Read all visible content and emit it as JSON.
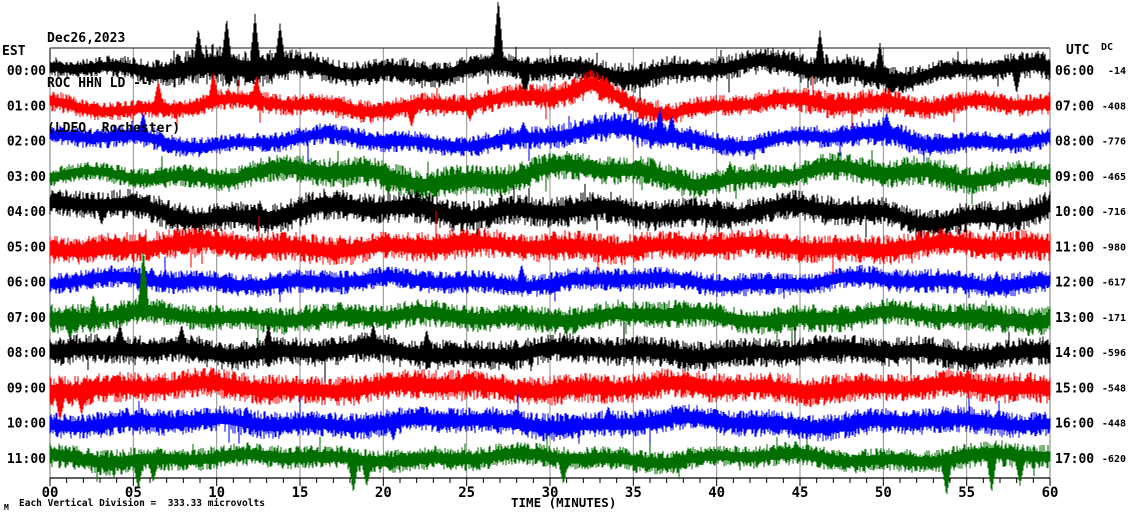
{
  "header": {
    "date": "Dec26,2023",
    "station": "ROC HHN LD --",
    "location": "(LDEO, Rochester)"
  },
  "axes": {
    "left_header": "EST",
    "right_header": "UTC",
    "dc_header": "DC",
    "x_title": "TIME (MINUTES)"
  },
  "caption": {
    "mark": "M",
    "text": "Each Vertical Division =  333.33 microvolts"
  },
  "colors": {
    "black": "#000000",
    "red": "#ff0000",
    "blue": "#0000ff",
    "green": "#006f00",
    "grid": "#8f8f8f",
    "frame_side": "#777777",
    "frame_top": "#111111",
    "axis": "#000000",
    "text": "#000000",
    "background": "#ffffff"
  },
  "chart_data": {
    "type": "line",
    "title": "ROC HHN LD -- helicorder, Dec26,2023 (LDEO, Rochester)",
    "xlabel": "TIME (MINUTES)",
    "x_range_minutes": [
      0,
      60
    ],
    "x_tick_minutes": [
      0,
      5,
      10,
      15,
      20,
      25,
      30,
      35,
      40,
      45,
      50,
      55,
      60
    ],
    "x_tick_labels": [
      "00",
      "05",
      "10",
      "15",
      "20",
      "25",
      "30",
      "35",
      "40",
      "45",
      "50",
      "55",
      "60"
    ],
    "minor_tick_every_minutes": 1,
    "grid": "vertical-only",
    "vertical_division_microvolts": 333.33,
    "rows": [
      {
        "est": "00:00",
        "utc": "06:00",
        "dc": "-14",
        "color": "black",
        "wander": 5,
        "envelope": [
          8,
          8,
          10,
          14,
          18,
          16,
          12,
          11,
          11,
          12,
          11,
          11,
          11,
          12,
          13,
          12,
          11,
          11,
          13,
          14,
          12,
          10,
          10,
          11,
          12
        ],
        "drift": [
          0,
          -2,
          -4,
          -5,
          -3,
          0,
          2,
          1,
          -1,
          -2,
          -1,
          0,
          2,
          3,
          1,
          -2,
          -4,
          -2,
          0,
          2,
          3,
          1,
          0,
          -1,
          4
        ],
        "spikes": [
          {
            "m": 8.9,
            "u": 38,
            "d": 6
          },
          {
            "m": 10.6,
            "u": 48,
            "d": 6
          },
          {
            "m": 12.3,
            "u": 55,
            "d": 7
          },
          {
            "m": 13.8,
            "u": 42,
            "d": 6
          },
          {
            "m": 26.9,
            "u": 66,
            "d": 8
          },
          {
            "m": 28.5,
            "u": 5,
            "d": 32
          },
          {
            "m": 46.2,
            "u": 40,
            "d": 6
          },
          {
            "m": 49.8,
            "u": 34,
            "d": 6
          },
          {
            "m": 58.0,
            "u": 6,
            "d": 28
          }
        ]
      },
      {
        "est": "01:00",
        "utc": "07:00",
        "dc": "-408",
        "color": "red",
        "wander": 4,
        "envelope": [
          9,
          8,
          8,
          8,
          9,
          9,
          9,
          10,
          10,
          10,
          10,
          10,
          11,
          12,
          10,
          9,
          9,
          9,
          11,
          12,
          11,
          10,
          9,
          9,
          10
        ],
        "drift": [
          0,
          1,
          2,
          0,
          -2,
          0,
          1,
          2,
          0,
          -1,
          0,
          -2,
          -8,
          -22,
          -4,
          6,
          3,
          0,
          -2,
          -4,
          -6,
          -2,
          0,
          2,
          1
        ],
        "spikes": [
          {
            "m": 6.5,
            "u": 28,
            "d": 5
          },
          {
            "m": 9.8,
            "u": 30,
            "d": 5
          },
          {
            "m": 12.4,
            "u": 26,
            "d": 5
          },
          {
            "m": 21.7,
            "u": 6,
            "d": 22
          },
          {
            "m": 25.2,
            "u": 5,
            "d": 16
          },
          {
            "m": 33.4,
            "u": 14,
            "d": 6
          }
        ]
      },
      {
        "est": "02:00",
        "utc": "08:00",
        "dc": "-776",
        "color": "blue",
        "wander": 4,
        "envelope": [
          8,
          9,
          10,
          9,
          8,
          8,
          9,
          9,
          9,
          9,
          9,
          10,
          10,
          12,
          13,
          11,
          9,
          9,
          9,
          10,
          12,
          10,
          9,
          9,
          9
        ],
        "drift": [
          0,
          -1,
          -3,
          0,
          2,
          1,
          0,
          -1,
          0,
          1,
          0,
          0,
          -2,
          -6,
          -12,
          -6,
          0,
          2,
          0,
          -2,
          -6,
          -2,
          0,
          1,
          0
        ],
        "spikes": [
          {
            "m": 5.6,
            "u": 24,
            "d": 6
          },
          {
            "m": 28.4,
            "u": 16,
            "d": 5
          },
          {
            "m": 36.6,
            "u": 28,
            "d": 8
          },
          {
            "m": 37.3,
            "u": 22,
            "d": 6
          },
          {
            "m": 50.2,
            "u": 20,
            "d": 6
          }
        ]
      },
      {
        "est": "03:00",
        "utc": "09:00",
        "dc": "-465",
        "color": "green",
        "wander": 5,
        "envelope": [
          8,
          8,
          9,
          10,
          10,
          11,
          12,
          13,
          13,
          13,
          14,
          13,
          12,
          12,
          12,
          12,
          11,
          11,
          11,
          12,
          12,
          13,
          12,
          11,
          10
        ],
        "drift": [
          2,
          3,
          1,
          -1,
          -3,
          -5,
          -3,
          0,
          2,
          3,
          2,
          0,
          -3,
          -5,
          -3,
          0,
          2,
          1,
          0,
          -2,
          -4,
          -6,
          -3,
          0,
          2
        ],
        "spikes": [
          {
            "m": 20.3,
            "u": 6,
            "d": 20
          },
          {
            "m": 40.8,
            "u": 18,
            "d": 5
          }
        ]
      },
      {
        "est": "04:00",
        "utc": "10:00",
        "dc": "-716",
        "color": "black",
        "wander": 5,
        "envelope": [
          11,
          12,
          13,
          13,
          12,
          13,
          14,
          13,
          13,
          14,
          13,
          13,
          13,
          14,
          13,
          13,
          13,
          12,
          13,
          13,
          12,
          12,
          13,
          13,
          13
        ],
        "drift": [
          -2,
          -4,
          -2,
          0,
          3,
          5,
          3,
          0,
          -3,
          -4,
          -2,
          0,
          2,
          4,
          2,
          0,
          -2,
          -3,
          0,
          3,
          5,
          7,
          4,
          2,
          0
        ],
        "spikes": [
          {
            "m": 3.1,
            "u": 6,
            "d": 20
          },
          {
            "m": 12.6,
            "u": 18,
            "d": 5
          },
          {
            "m": 31.2,
            "u": 16,
            "d": 6
          }
        ]
      },
      {
        "est": "05:00",
        "utc": "11:00",
        "dc": "-980",
        "color": "red",
        "wander": 3,
        "envelope": [
          12,
          12,
          13,
          13,
          12,
          13,
          13,
          13,
          12,
          13,
          13,
          12,
          13,
          13,
          13,
          12,
          13,
          13,
          12,
          12,
          13,
          12,
          12,
          13,
          13
        ],
        "drift": [
          0,
          1,
          -1,
          -2,
          0,
          2,
          1,
          0,
          -1,
          0,
          1,
          0,
          -1,
          -2,
          0,
          1,
          2,
          0,
          -1,
          0,
          1,
          0,
          0,
          1,
          0
        ],
        "spikes": [
          {
            "m": 17.4,
            "u": 16,
            "d": 5
          },
          {
            "m": 39.9,
            "u": 14,
            "d": 6
          }
        ]
      },
      {
        "est": "06:00",
        "utc": "12:00",
        "dc": "-617",
        "color": "blue",
        "wander": 3,
        "envelope": [
          9,
          9,
          10,
          10,
          9,
          10,
          10,
          10,
          9,
          10,
          10,
          9,
          10,
          10,
          10,
          9,
          10,
          10,
          9,
          10,
          10,
          11,
          10,
          10,
          10
        ],
        "drift": [
          0,
          -1,
          0,
          1,
          0,
          -1,
          0,
          1,
          0,
          0,
          -1,
          0,
          1,
          0,
          -1,
          0,
          0,
          1,
          0,
          -1,
          0,
          1,
          0,
          0,
          -1
        ],
        "spikes": [
          {
            "m": 6.1,
            "u": 14,
            "d": 5
          },
          {
            "m": 28.3,
            "u": 22,
            "d": 5
          },
          {
            "m": 56.8,
            "u": 16,
            "d": 6
          }
        ]
      },
      {
        "est": "07:00",
        "utc": "13:00",
        "dc": "-171",
        "color": "green",
        "wander": 3,
        "envelope": [
          13,
          12,
          11,
          11,
          11,
          11,
          12,
          11,
          11,
          12,
          11,
          11,
          12,
          12,
          11,
          12,
          11,
          11,
          12,
          12,
          11,
          11,
          12,
          12,
          12
        ],
        "drift": [
          2,
          0,
          -2,
          0,
          1,
          0,
          -1,
          0,
          1,
          0,
          0,
          -1,
          0,
          1,
          0,
          -1,
          0,
          1,
          0,
          0,
          -1,
          0,
          1,
          0,
          0
        ],
        "spikes": [
          {
            "m": 1.2,
            "u": 6,
            "d": 22
          },
          {
            "m": 2.6,
            "u": 24,
            "d": 8
          },
          {
            "m": 5.6,
            "u": 62,
            "d": 10
          },
          {
            "m": 47.5,
            "u": 15,
            "d": 5
          }
        ]
      },
      {
        "est": "08:00",
        "utc": "14:00",
        "dc": "-596",
        "color": "black",
        "wander": 3,
        "envelope": [
          12,
          13,
          13,
          12,
          13,
          13,
          12,
          13,
          13,
          13,
          12,
          13,
          13,
          12,
          13,
          13,
          13,
          12,
          13,
          13,
          12,
          13,
          13,
          12,
          13
        ],
        "drift": [
          0,
          1,
          -2,
          -4,
          -2,
          0,
          1,
          0,
          -1,
          0,
          1,
          0,
          -1,
          0,
          1,
          0,
          0,
          -1,
          0,
          1,
          0,
          -1,
          0,
          1,
          0
        ],
        "spikes": [
          {
            "m": 4.2,
            "u": 26,
            "d": 5
          },
          {
            "m": 7.9,
            "u": 24,
            "d": 5
          },
          {
            "m": 13.1,
            "u": 28,
            "d": 6
          },
          {
            "m": 19.4,
            "u": 24,
            "d": 5
          },
          {
            "m": 22.6,
            "u": 26,
            "d": 5
          }
        ]
      },
      {
        "est": "09:00",
        "utc": "15:00",
        "dc": "-548",
        "color": "red",
        "wander": 3,
        "envelope": [
          14,
          13,
          13,
          12,
          13,
          13,
          12,
          13,
          12,
          13,
          13,
          12,
          13,
          13,
          12,
          13,
          13,
          12,
          13,
          13,
          12,
          13,
          12,
          13,
          13
        ],
        "drift": [
          0,
          0,
          1,
          0,
          -1,
          0,
          1,
          0,
          0,
          -1,
          0,
          1,
          0,
          -1,
          0,
          0,
          1,
          0,
          -1,
          0,
          0,
          1,
          0,
          -1,
          0
        ],
        "spikes": [
          {
            "m": 0.6,
            "u": 8,
            "d": 30
          },
          {
            "m": 1.9,
            "u": 6,
            "d": 24
          },
          {
            "m": 43.2,
            "u": 15,
            "d": 6
          }
        ]
      },
      {
        "est": "10:00",
        "utc": "16:00",
        "dc": "-448",
        "color": "blue",
        "wander": 3,
        "envelope": [
          11,
          11,
          12,
          11,
          11,
          12,
          11,
          11,
          12,
          11,
          11,
          12,
          12,
          11,
          12,
          11,
          11,
          12,
          11,
          12,
          11,
          11,
          12,
          11,
          11
        ],
        "drift": [
          0,
          -1,
          0,
          1,
          0,
          0,
          -1,
          0,
          1,
          0,
          -1,
          0,
          0,
          1,
          0,
          -1,
          0,
          0,
          1,
          0,
          -1,
          0,
          1,
          0,
          0
        ],
        "spikes": [
          {
            "m": 11.8,
            "u": 16,
            "d": 5
          },
          {
            "m": 20.6,
            "u": 6,
            "d": 20
          },
          {
            "m": 33.5,
            "u": 18,
            "d": 6
          }
        ]
      },
      {
        "est": "11:00",
        "utc": "17:00",
        "dc": "-620",
        "color": "green",
        "wander": 3,
        "envelope": [
          11,
          11,
          11,
          10,
          10,
          10,
          10,
          10,
          10,
          10,
          10,
          10,
          10,
          10,
          10,
          10,
          9,
          10,
          10,
          10,
          10,
          10,
          11,
          11,
          10
        ],
        "drift": [
          0,
          1,
          0,
          -1,
          0,
          1,
          0,
          0,
          -1,
          0,
          1,
          0,
          0,
          -1,
          0,
          1,
          0,
          0,
          -1,
          0,
          0,
          1,
          0,
          -1,
          0
        ],
        "spikes": [
          {
            "m": 5.3,
            "u": 6,
            "d": 30
          },
          {
            "m": 6.2,
            "u": 5,
            "d": 24
          },
          {
            "m": 18.2,
            "u": 6,
            "d": 34
          },
          {
            "m": 19.0,
            "u": 5,
            "d": 26
          },
          {
            "m": 30.8,
            "u": 6,
            "d": 26
          },
          {
            "m": 53.8,
            "u": 8,
            "d": 36
          },
          {
            "m": 56.5,
            "u": 6,
            "d": 40
          },
          {
            "m": 58.2,
            "u": 6,
            "d": 30
          }
        ]
      }
    ]
  }
}
